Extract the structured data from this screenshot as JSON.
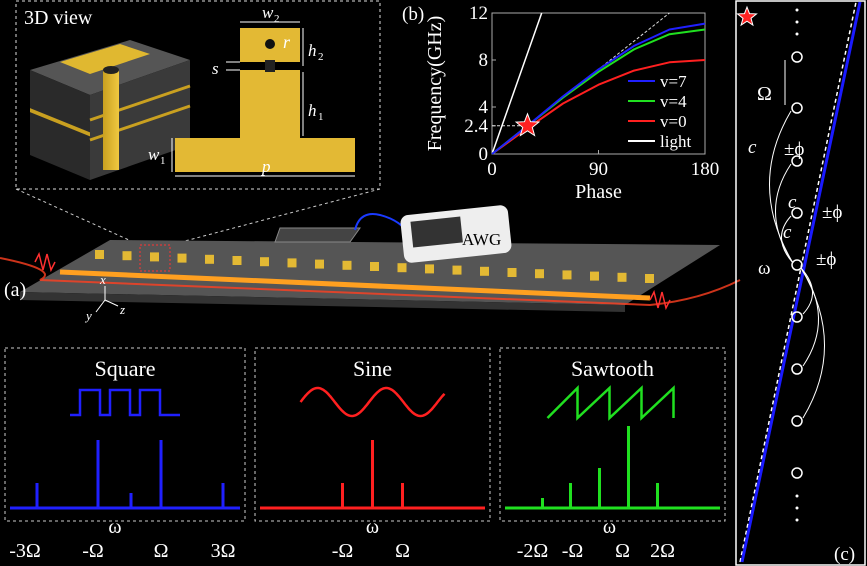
{
  "panel_a": {
    "label": "(a)",
    "inset_title": "3D view",
    "dims": {
      "w2": "w",
      "w2_sub": "2",
      "r": "r",
      "h2": "h",
      "h2_sub": "2",
      "s": "s",
      "h1": "h",
      "h1_sub": "1",
      "w1": "w",
      "w1_sub": "1",
      "p": "p"
    },
    "awg_label": "AWG",
    "axes": {
      "x": "x",
      "y": "y",
      "z": "z"
    }
  },
  "waveforms": [
    {
      "title": "Square",
      "color": "#2020ff",
      "labels": [
        "-3Ω",
        "-Ω",
        "Ω",
        "3Ω"
      ],
      "center": "ω",
      "center_sub": "0"
    },
    {
      "title": "Sine",
      "color": "#ff2020",
      "labels": [
        "-Ω",
        "Ω"
      ],
      "center": "ω",
      "center_sub": "0"
    },
    {
      "title": "Sawtooth",
      "color": "#20e020",
      "labels": [
        "-2Ω",
        "-Ω",
        "Ω",
        "2Ω"
      ],
      "center": "ω",
      "center_sub": "0"
    }
  ],
  "panel_c": {
    "label": "(c)",
    "omega": "Ω",
    "omega0": "ω",
    "omega0_sub": "0",
    "c": [
      {
        "t": "c",
        "s": "1"
      },
      {
        "t": "c",
        "s": "2"
      },
      {
        "t": "c",
        "s": "3"
      }
    ],
    "phi": [
      {
        "t": "±ϕ",
        "s": "1"
      },
      {
        "t": "±ϕ",
        "s": "2"
      },
      {
        "t": "±ϕ",
        "s": "3"
      }
    ],
    "star_color": "#ff2020",
    "line_color": "#1a1aff"
  },
  "chart_data": {
    "type": "line",
    "panel_label": "(b)",
    "xlabel": "Phase",
    "ylabel": "Frequency(GHz)",
    "xlim": [
      0,
      180
    ],
    "ylim": [
      0,
      12
    ],
    "xticks": [
      "0",
      "90",
      "180"
    ],
    "yticks": [
      "0",
      "2.4",
      "4",
      "8",
      "12"
    ],
    "grid": false,
    "legend_position": "bottom-right",
    "marker": {
      "x": 30,
      "y": 2.4,
      "shape": "star"
    },
    "series": [
      {
        "name": "v=7",
        "color": "#2020ff",
        "x": [
          0,
          30,
          60,
          90,
          120,
          150,
          180
        ],
        "y": [
          0,
          2.4,
          4.9,
          7.2,
          9.2,
          10.6,
          11.1
        ]
      },
      {
        "name": "v=4",
        "color": "#20e020",
        "x": [
          0,
          30,
          60,
          90,
          120,
          150,
          180
        ],
        "y": [
          0,
          2.4,
          4.8,
          7.0,
          8.9,
          10.2,
          10.6
        ]
      },
      {
        "name": "v=0",
        "color": "#ff2020",
        "x": [
          0,
          30,
          60,
          90,
          120,
          150,
          180
        ],
        "y": [
          0,
          2.2,
          4.3,
          5.9,
          7.1,
          7.8,
          8.0
        ]
      },
      {
        "name": "light",
        "color": "#ffffff",
        "x": [
          0,
          42
        ],
        "y": [
          0,
          12
        ]
      }
    ]
  }
}
